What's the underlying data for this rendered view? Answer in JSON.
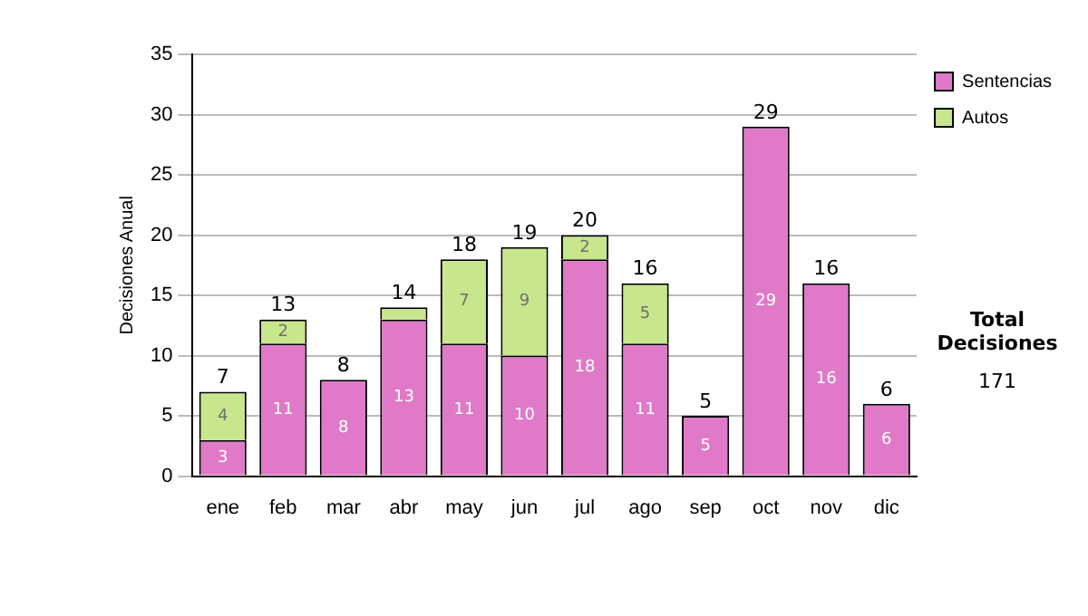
{
  "chart_data": {
    "type": "bar",
    "stacked": true,
    "ylabel": "Decisiones Anual",
    "categories": [
      "ene",
      "feb",
      "mar",
      "abr",
      "may",
      "jun",
      "jul",
      "ago",
      "sep",
      "oct",
      "nov",
      "dic"
    ],
    "series": [
      {
        "name": "Sentencias",
        "color": "#e07ac8",
        "values": [
          3,
          11,
          8,
          13,
          11,
          10,
          18,
          11,
          5,
          29,
          16,
          6
        ],
        "value_labels": [
          "3",
          "11",
          "8",
          "13",
          "11",
          "10",
          "18",
          "11",
          "5",
          "29",
          "16",
          "6"
        ]
      },
      {
        "name": "Autos",
        "color": "#c8e68c",
        "values": [
          4,
          2,
          0,
          1,
          7,
          9,
          2,
          5,
          0,
          0,
          0,
          0
        ],
        "value_labels": [
          "4",
          "2",
          null,
          null,
          "7",
          "9",
          "2",
          "5",
          null,
          null,
          null,
          null
        ]
      }
    ],
    "totals": [
      "7",
      "13",
      "8",
      "14",
      "18",
      "19",
      "20",
      "16",
      "5",
      "29",
      "16",
      "6"
    ],
    "ylim": [
      0,
      35
    ],
    "yticks": [
      0,
      5,
      10,
      15,
      20,
      25,
      30,
      35
    ],
    "grid": "y",
    "legend": "right",
    "annotations": [
      "Total Decisiones",
      "171"
    ]
  }
}
